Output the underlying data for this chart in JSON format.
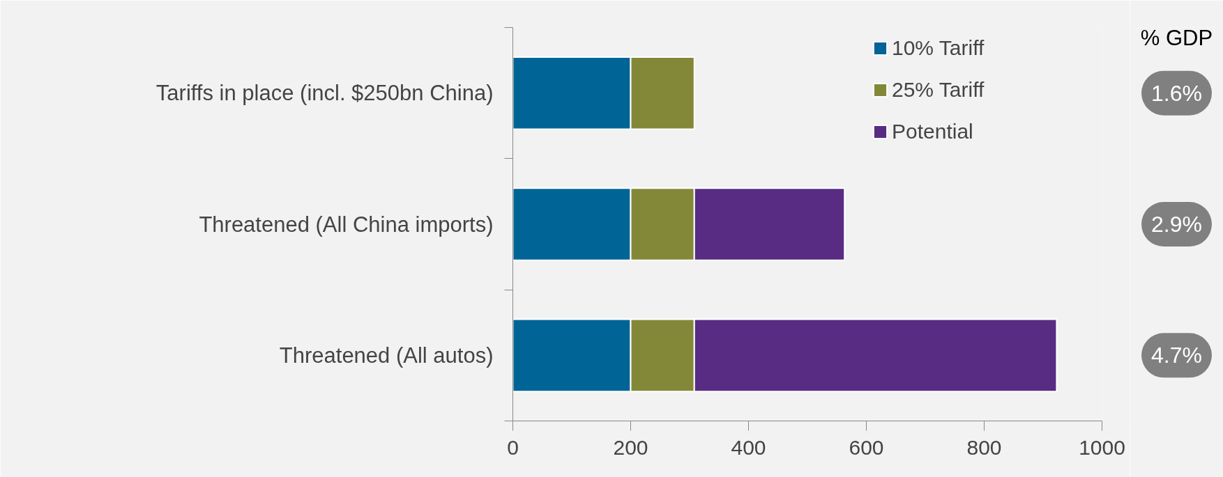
{
  "chart_data": {
    "type": "bar",
    "orientation": "horizontal",
    "stacked": true,
    "categories": [
      "Tariffs in place (incl. $250bn China)",
      "Threatened (All China imports)",
      "Threatened (All autos)"
    ],
    "series": [
      {
        "name": "10% Tariff",
        "color": "#006496",
        "values": [
          200,
          200,
          200
        ]
      },
      {
        "name": "25% Tariff",
        "color": "#838838",
        "values": [
          108,
          108,
          108
        ]
      },
      {
        "name": "Potential",
        "color": "#582c83",
        "values": [
          null,
          255,
          615
        ]
      }
    ],
    "xlim": [
      0,
      1000
    ],
    "xticks": [
      0,
      200,
      400,
      600,
      800,
      1000
    ],
    "grid": false,
    "legend": "top right",
    "annotations": [
      "% GDP",
      "1.6%",
      "2.9%",
      "4.7%"
    ]
  }
}
